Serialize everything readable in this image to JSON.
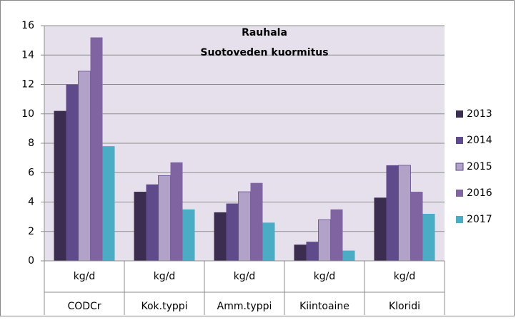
{
  "chart_data": {
    "type": "bar",
    "title": [
      "Rauhala",
      "Suotoveden kuormitus"
    ],
    "categories": [
      "CODCr",
      "Kok.typpi",
      "Amm.typpi",
      "Kiintoaine",
      "Kloridi"
    ],
    "category_units": [
      "kg/d",
      "kg/d",
      "kg/d",
      "kg/d",
      "kg/d"
    ],
    "series": [
      {
        "name": "2013",
        "color": "#3b2d4f",
        "values": [
          10.2,
          4.7,
          3.3,
          1.1,
          4.3
        ]
      },
      {
        "name": "2014",
        "color": "#5f4a8b",
        "values": [
          12.0,
          5.2,
          3.9,
          1.3,
          6.5
        ]
      },
      {
        "name": "2015",
        "color": "#b3a2c7",
        "values": [
          12.9,
          5.8,
          4.7,
          2.8,
          6.5
        ]
      },
      {
        "name": "2016",
        "color": "#8064a2",
        "values": [
          15.2,
          6.7,
          5.3,
          3.5,
          4.7
        ]
      },
      {
        "name": "2017",
        "color": "#4bacc6",
        "values": [
          7.8,
          3.5,
          2.6,
          0.7,
          3.2
        ]
      }
    ],
    "ylim": [
      0,
      16
    ],
    "yticks": [
      0,
      2,
      4,
      6,
      8,
      10,
      12,
      14,
      16
    ],
    "grid": true,
    "legend": "right"
  }
}
